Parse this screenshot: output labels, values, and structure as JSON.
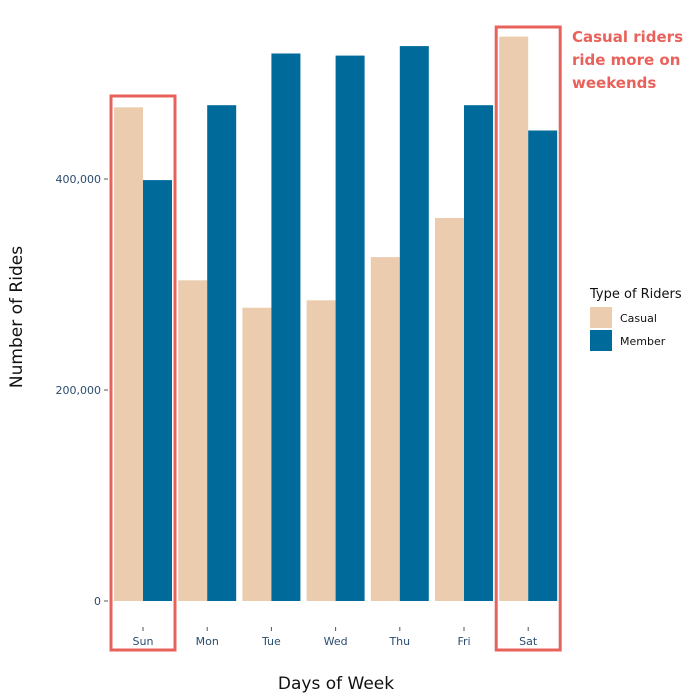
{
  "chart_data": {
    "type": "bar",
    "categories": [
      "Sun",
      "Mon",
      "Tue",
      "Wed",
      "Thu",
      "Fri",
      "Sat"
    ],
    "series": [
      {
        "name": "Casual",
        "color": "#ebccae",
        "values": [
          468000,
          304000,
          278000,
          285000,
          326000,
          363000,
          535000
        ]
      },
      {
        "name": "Member",
        "color": "#006a9b",
        "values": [
          399000,
          470000,
          519000,
          517000,
          526000,
          470000,
          446000
        ]
      }
    ],
    "xlabel": "Days of Week",
    "ylabel": "Number of Rides",
    "ylim": [
      0,
      560000
    ],
    "yticks": [
      0,
      200000,
      400000
    ],
    "ytick_labels": [
      "0",
      "200,000",
      "400,000"
    ],
    "grid": false,
    "legend": {
      "title": "Type of Riders",
      "placement": "right"
    },
    "highlight": {
      "categories": [
        "Sun",
        "Sat"
      ],
      "color": "#e8625b"
    },
    "annotation": {
      "lines": [
        "Casual riders",
        "ride more on",
        "weekends"
      ],
      "color": "#e8625b"
    }
  }
}
